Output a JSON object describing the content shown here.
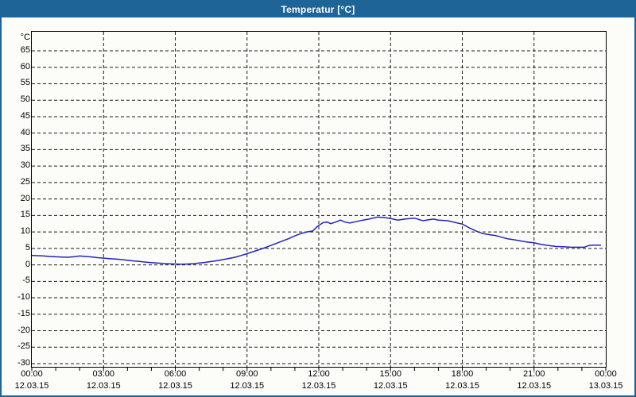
{
  "window": {
    "title": "Temperatur [°C]"
  },
  "colors": {
    "titlebar": "#1E6496",
    "window_border": "#1E6496",
    "background": "#FCFDF8",
    "grid": "#1A1A1A",
    "axis": "#000000",
    "line": "#2323BE",
    "title_text": "#FFFFFF",
    "label_text": "#000000"
  },
  "chart_data": {
    "type": "line",
    "title": "Temperatur [°C]",
    "y_axis_unit_label": "°C",
    "ylim": [
      -30,
      65
    ],
    "y_tick_step": 5,
    "y_ticks": [
      65,
      60,
      55,
      50,
      45,
      40,
      35,
      30,
      25,
      20,
      15,
      10,
      5,
      0,
      -5,
      -10,
      -15,
      -20,
      -25,
      -30
    ],
    "x_tick_hours": [
      0,
      3,
      6,
      9,
      12,
      15,
      18,
      21,
      24
    ],
    "x_ticks": [
      {
        "time": "00:00",
        "date": "12.03.15"
      },
      {
        "time": "03:00",
        "date": "12.03.15"
      },
      {
        "time": "06:00",
        "date": "12.03.15"
      },
      {
        "time": "09:00",
        "date": "12.03.15"
      },
      {
        "time": "12:00",
        "date": "12.03.15"
      },
      {
        "time": "15:00",
        "date": "12.03.15"
      },
      {
        "time": "18:00",
        "date": "12.03.15"
      },
      {
        "time": "21:00",
        "date": "12.03.15"
      },
      {
        "time": "00:00",
        "date": "13.03.15"
      }
    ],
    "x_minor_tick_step_hours": 1,
    "grid": "dashed",
    "legend": "none",
    "series": [
      {
        "name": "Temperatur",
        "points": [
          [
            0,
            2.9
          ],
          [
            0.25,
            2.8
          ],
          [
            0.5,
            2.7
          ],
          [
            0.75,
            2.55
          ],
          [
            1,
            2.45
          ],
          [
            1.25,
            2.35
          ],
          [
            1.5,
            2.3
          ],
          [
            1.75,
            2.45
          ],
          [
            2,
            2.7
          ],
          [
            2.25,
            2.55
          ],
          [
            2.5,
            2.4
          ],
          [
            2.75,
            2.2
          ],
          [
            3,
            2.05
          ],
          [
            3.25,
            1.9
          ],
          [
            3.5,
            1.75
          ],
          [
            3.75,
            1.6
          ],
          [
            4,
            1.4
          ],
          [
            4.25,
            1.2
          ],
          [
            4.5,
            1.05
          ],
          [
            4.75,
            0.85
          ],
          [
            5,
            0.7
          ],
          [
            5.25,
            0.55
          ],
          [
            5.5,
            0.4
          ],
          [
            5.75,
            0.3
          ],
          [
            6,
            0.25
          ],
          [
            6.25,
            0.2
          ],
          [
            6.5,
            0.25
          ],
          [
            6.75,
            0.35
          ],
          [
            7,
            0.55
          ],
          [
            7.25,
            0.75
          ],
          [
            7.5,
            1.0
          ],
          [
            7.75,
            1.3
          ],
          [
            8,
            1.6
          ],
          [
            8.25,
            1.95
          ],
          [
            8.5,
            2.3
          ],
          [
            8.75,
            2.85
          ],
          [
            9,
            3.4
          ],
          [
            9.25,
            4.0
          ],
          [
            9.5,
            4.6
          ],
          [
            9.75,
            5.2
          ],
          [
            10,
            5.9
          ],
          [
            10.25,
            6.6
          ],
          [
            10.5,
            7.3
          ],
          [
            10.75,
            8.0
          ],
          [
            11,
            8.8
          ],
          [
            11.25,
            9.5
          ],
          [
            11.5,
            10.0
          ],
          [
            11.75,
            10.3
          ],
          [
            11.9,
            11.4
          ],
          [
            12,
            12.0
          ],
          [
            12.2,
            12.9
          ],
          [
            12.35,
            13.0
          ],
          [
            12.5,
            12.5
          ],
          [
            12.75,
            13.1
          ],
          [
            12.9,
            13.6
          ],
          [
            13.1,
            13.0
          ],
          [
            13.3,
            12.7
          ],
          [
            13.6,
            13.2
          ],
          [
            13.85,
            13.6
          ],
          [
            14.1,
            13.9
          ],
          [
            14.45,
            14.5
          ],
          [
            14.7,
            14.4
          ],
          [
            15,
            14.1
          ],
          [
            15.3,
            13.6
          ],
          [
            15.6,
            13.9
          ],
          [
            16,
            14.2
          ],
          [
            16.35,
            13.4
          ],
          [
            16.6,
            13.7
          ],
          [
            16.8,
            13.9
          ],
          [
            17,
            13.6
          ],
          [
            17.4,
            13.4
          ],
          [
            17.8,
            12.7
          ],
          [
            18,
            12.4
          ],
          [
            18.3,
            11.2
          ],
          [
            18.6,
            10.2
          ],
          [
            18.85,
            9.5
          ],
          [
            19.1,
            9.2
          ],
          [
            19.4,
            8.9
          ],
          [
            19.7,
            8.3
          ],
          [
            19.9,
            7.9
          ],
          [
            20.2,
            7.6
          ],
          [
            20.5,
            7.2
          ],
          [
            20.75,
            6.9
          ],
          [
            21,
            6.7
          ],
          [
            21.3,
            6.2
          ],
          [
            21.6,
            5.9
          ],
          [
            21.9,
            5.6
          ],
          [
            22.2,
            5.5
          ],
          [
            22.5,
            5.4
          ],
          [
            22.8,
            5.35
          ],
          [
            23.1,
            5.35
          ],
          [
            23.3,
            5.9
          ],
          [
            23.5,
            6.0
          ],
          [
            23.8,
            6.0
          ]
        ]
      }
    ]
  }
}
